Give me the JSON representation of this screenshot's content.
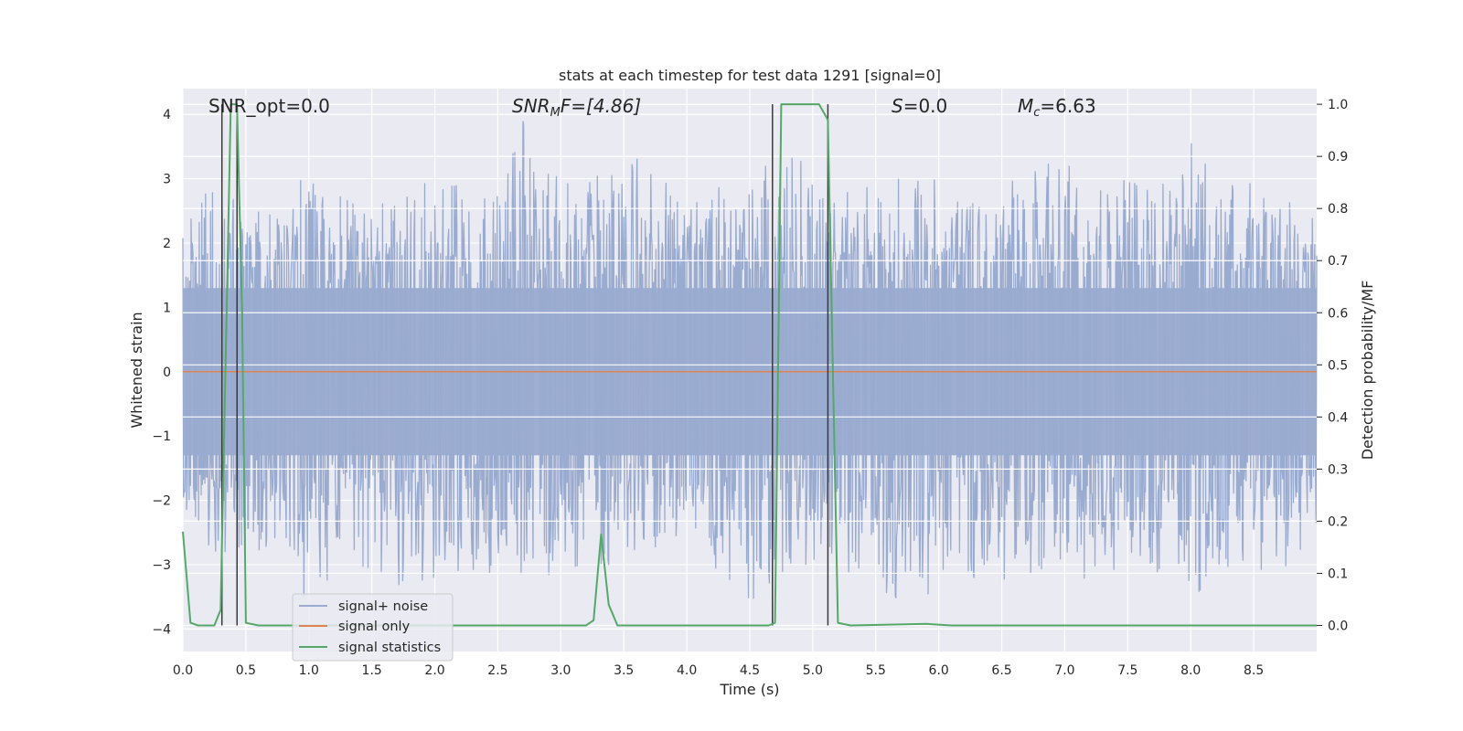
{
  "chart_data": {
    "type": "line",
    "title": "stats at each timestep for test data 1291 [signal=0]",
    "xlabel": "Time (s)",
    "ylabel": "Whitened strain",
    "ylabel_right": "Detection probability/MF",
    "xlim": [
      0.0,
      9.0
    ],
    "ylim": [
      -4.35,
      4.4
    ],
    "ylim_right": [
      -0.05,
      1.03
    ],
    "xticks": [
      "0.0",
      "0.5",
      "1.0",
      "1.5",
      "2.0",
      "2.5",
      "3.0",
      "3.5",
      "4.0",
      "4.5",
      "5.0",
      "5.5",
      "6.0",
      "6.5",
      "7.0",
      "7.5",
      "8.0",
      "8.5"
    ],
    "yticks": [
      "4",
      "3",
      "2",
      "1",
      "0",
      "−1",
      "−2",
      "−3",
      "−4"
    ],
    "yticks_right": [
      "1.0",
      "0.9",
      "0.8",
      "0.7",
      "0.6",
      "0.5",
      "0.4",
      "0.3",
      "0.2",
      "0.1",
      "0.0"
    ],
    "grid": true,
    "legend_position": "lower-left",
    "annotations": {
      "snr_opt": "SNR_opt=0.0",
      "snr_mf_main": "SNR",
      "snr_mf_sub": "M",
      "snr_mf_rest": "F=[4.86]",
      "s_main": "S",
      "s_rest": "=0.0",
      "mc_main": "M",
      "mc_sub": "c",
      "mc_rest": "=6.63"
    },
    "series": [
      {
        "name": "signal+ noise",
        "color": "#9aabd0",
        "description_values": "whitened noise, amplitude mostly within ±2.5, peaks to about ±4",
        "envelope_peaks": [
          [
            0.1,
            2.4
          ],
          [
            0.25,
            3.3
          ],
          [
            0.45,
            2.5
          ],
          [
            0.7,
            2.6
          ],
          [
            0.9,
            3.0
          ],
          [
            1.1,
            2.9
          ],
          [
            1.5,
            2.6
          ],
          [
            1.8,
            2.8
          ],
          [
            2.1,
            3.2
          ],
          [
            2.45,
            2.8
          ],
          [
            2.7,
            4.1
          ],
          [
            2.85,
            3.2
          ],
          [
            3.2,
            3.0
          ],
          [
            3.65,
            3.5
          ],
          [
            4.0,
            2.7
          ],
          [
            4.4,
            3.0
          ],
          [
            4.7,
            3.4
          ],
          [
            4.9,
            3.3
          ],
          [
            5.25,
            2.8
          ],
          [
            5.65,
            3.0
          ],
          [
            5.95,
            3.0
          ],
          [
            6.3,
            3.0
          ],
          [
            6.7,
            3.1
          ],
          [
            6.95,
            3.3
          ],
          [
            7.3,
            2.9
          ],
          [
            7.55,
            3.1
          ],
          [
            7.8,
            2.9
          ],
          [
            8.0,
            3.6
          ],
          [
            8.4,
            3.0
          ],
          [
            8.7,
            2.8
          ]
        ],
        "envelope_troughs": [
          [
            0.1,
            -2.5
          ],
          [
            0.3,
            -2.9
          ],
          [
            0.75,
            -2.8
          ],
          [
            0.95,
            -3.5
          ],
          [
            1.1,
            -3.6
          ],
          [
            1.6,
            -3.2
          ],
          [
            2.0,
            -3.6
          ],
          [
            2.3,
            -3.1
          ],
          [
            2.7,
            -3.2
          ],
          [
            3.3,
            -3.1
          ],
          [
            3.7,
            -2.8
          ],
          [
            4.2,
            -3.0
          ],
          [
            4.5,
            -3.9
          ],
          [
            4.9,
            -3.1
          ],
          [
            5.3,
            -3.2
          ],
          [
            5.7,
            -3.6
          ],
          [
            6.2,
            -3.4
          ],
          [
            6.6,
            -3.2
          ],
          [
            7.0,
            -3.3
          ],
          [
            7.4,
            -3.1
          ],
          [
            7.7,
            -3.5
          ],
          [
            7.9,
            -3.9
          ],
          [
            8.3,
            -3.2
          ],
          [
            8.8,
            -3.0
          ]
        ]
      },
      {
        "name": "signal only",
        "color": "#dd8452",
        "x": [
          0.0,
          9.0
        ],
        "y": [
          0.0,
          0.0
        ]
      },
      {
        "name": "signal statistics",
        "color": "#55a868",
        "axis": "right",
        "x": [
          0.0,
          0.06,
          0.12,
          0.25,
          0.3,
          0.38,
          0.43,
          0.47,
          0.5,
          0.6,
          3.2,
          3.26,
          3.32,
          3.38,
          3.45,
          4.65,
          4.7,
          4.75,
          5.05,
          5.12,
          5.2,
          5.3,
          5.9,
          6.1,
          9.0
        ],
        "y": [
          0.18,
          0.005,
          0.0,
          0.0,
          0.03,
          1.0,
          1.0,
          0.6,
          0.005,
          0.0,
          0.0,
          0.01,
          0.175,
          0.04,
          0.0,
          0.0,
          0.005,
          1.0,
          1.0,
          0.97,
          0.005,
          0.0,
          0.003,
          0.0,
          0.0
        ]
      }
    ],
    "vertical_markers_x": [
      0.31,
      0.43,
      4.68,
      5.12
    ]
  }
}
